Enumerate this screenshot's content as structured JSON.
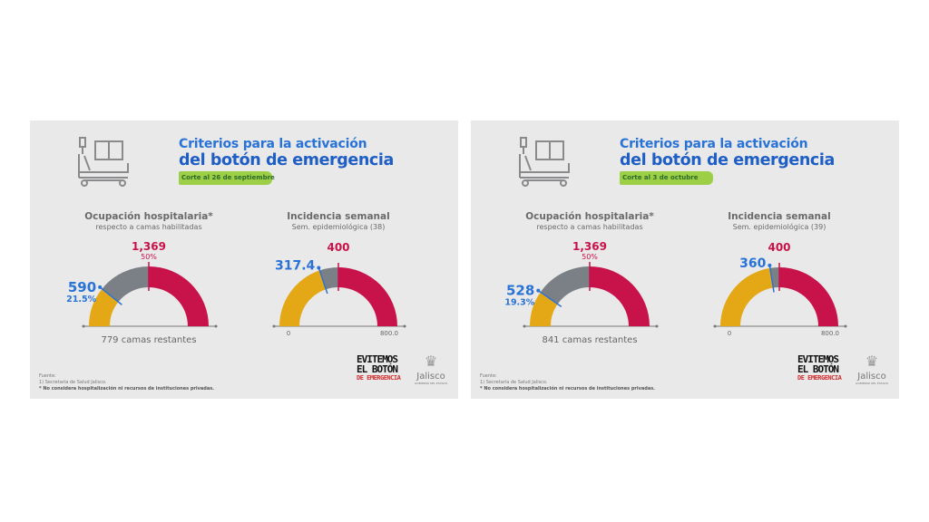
{
  "colors": {
    "yellow": "#e4a817",
    "gray": "#7b8087",
    "red": "#c8124a",
    "blue": "#2a73d6",
    "panel": "#e9e9ea"
  },
  "panels": [
    {
      "title_line1": "Criterios para la activación",
      "title_line2": "del botón de emergencia",
      "badge": "Corte al 26 de septiembre",
      "g1": {
        "title": "Ocupación hospitalaria*",
        "subtitle": "respecto a camas habilitadas",
        "value_label": "590",
        "value_pct_label": "21.5%",
        "threshold_label": "1,369",
        "threshold_pct_label": "50%",
        "remaining": "779 camas restantes"
      },
      "g2": {
        "title": "Incidencia semanal",
        "subtitle": "Sem. epidemiológica (38)",
        "value_label": "317.4",
        "threshold_label": "400",
        "min_label": "0",
        "max_label": "800.0"
      },
      "footer": {
        "source": "Fuente:",
        "source_item": "1) Secretaría de Salud Jalisco.",
        "note": "* No considera hospitalización ni recursos de instituciones privadas."
      },
      "logo1": {
        "line1": "EVITEMOS",
        "line2": "EL BOTÓN",
        "line3": "DE EMERGENCIA"
      },
      "logo2": {
        "name": "Jalisco",
        "sub": "GOBIERNO DEL ESTADO"
      }
    },
    {
      "title_line1": "Criterios para la activación",
      "title_line2": "del botón de emergencia",
      "badge": "Corte al 3 de octubre",
      "g1": {
        "title": "Ocupación hospitalaria*",
        "subtitle": "respecto a camas habilitadas",
        "value_label": "528",
        "value_pct_label": "19.3%",
        "threshold_label": "1,369",
        "threshold_pct_label": "50%",
        "remaining": "841 camas restantes"
      },
      "g2": {
        "title": "Incidencia semanal",
        "subtitle": "Sem. epidemiológica (39)",
        "value_label": "360",
        "threshold_label": "400",
        "min_label": "0",
        "max_label": "800.0"
      },
      "footer": {
        "source": "Fuente:",
        "source_item": "1) Secretaría de Salud Jalisco.",
        "note": "* No considera hospitalización ni recursos de instituciones privadas."
      },
      "logo1": {
        "line1": "EVITEMOS",
        "line2": "EL BOTÓN",
        "line3": "DE EMERGENCIA"
      },
      "logo2": {
        "name": "Jalisco",
        "sub": "GOBIERNO DEL ESTADO"
      }
    }
  ],
  "chart_data": [
    {
      "type": "gauge",
      "title": "Ocupación hospitalaria* (Corte al 26 de septiembre)",
      "unit": "percent",
      "min": 0,
      "max": 100,
      "value": 21.5,
      "value_count": 590,
      "threshold": 50,
      "threshold_count": 1369,
      "remaining": 779
    },
    {
      "type": "gauge",
      "title": "Incidencia semanal (38)",
      "min": 0,
      "max": 800,
      "value": 317.4,
      "threshold": 400
    },
    {
      "type": "gauge",
      "title": "Ocupación hospitalaria* (Corte al 3 de octubre)",
      "unit": "percent",
      "min": 0,
      "max": 100,
      "value": 19.3,
      "value_count": 528,
      "threshold": 50,
      "threshold_count": 1369,
      "remaining": 841
    },
    {
      "type": "gauge",
      "title": "Incidencia semanal (39)",
      "min": 0,
      "max": 800,
      "value": 360,
      "threshold": 400
    }
  ]
}
